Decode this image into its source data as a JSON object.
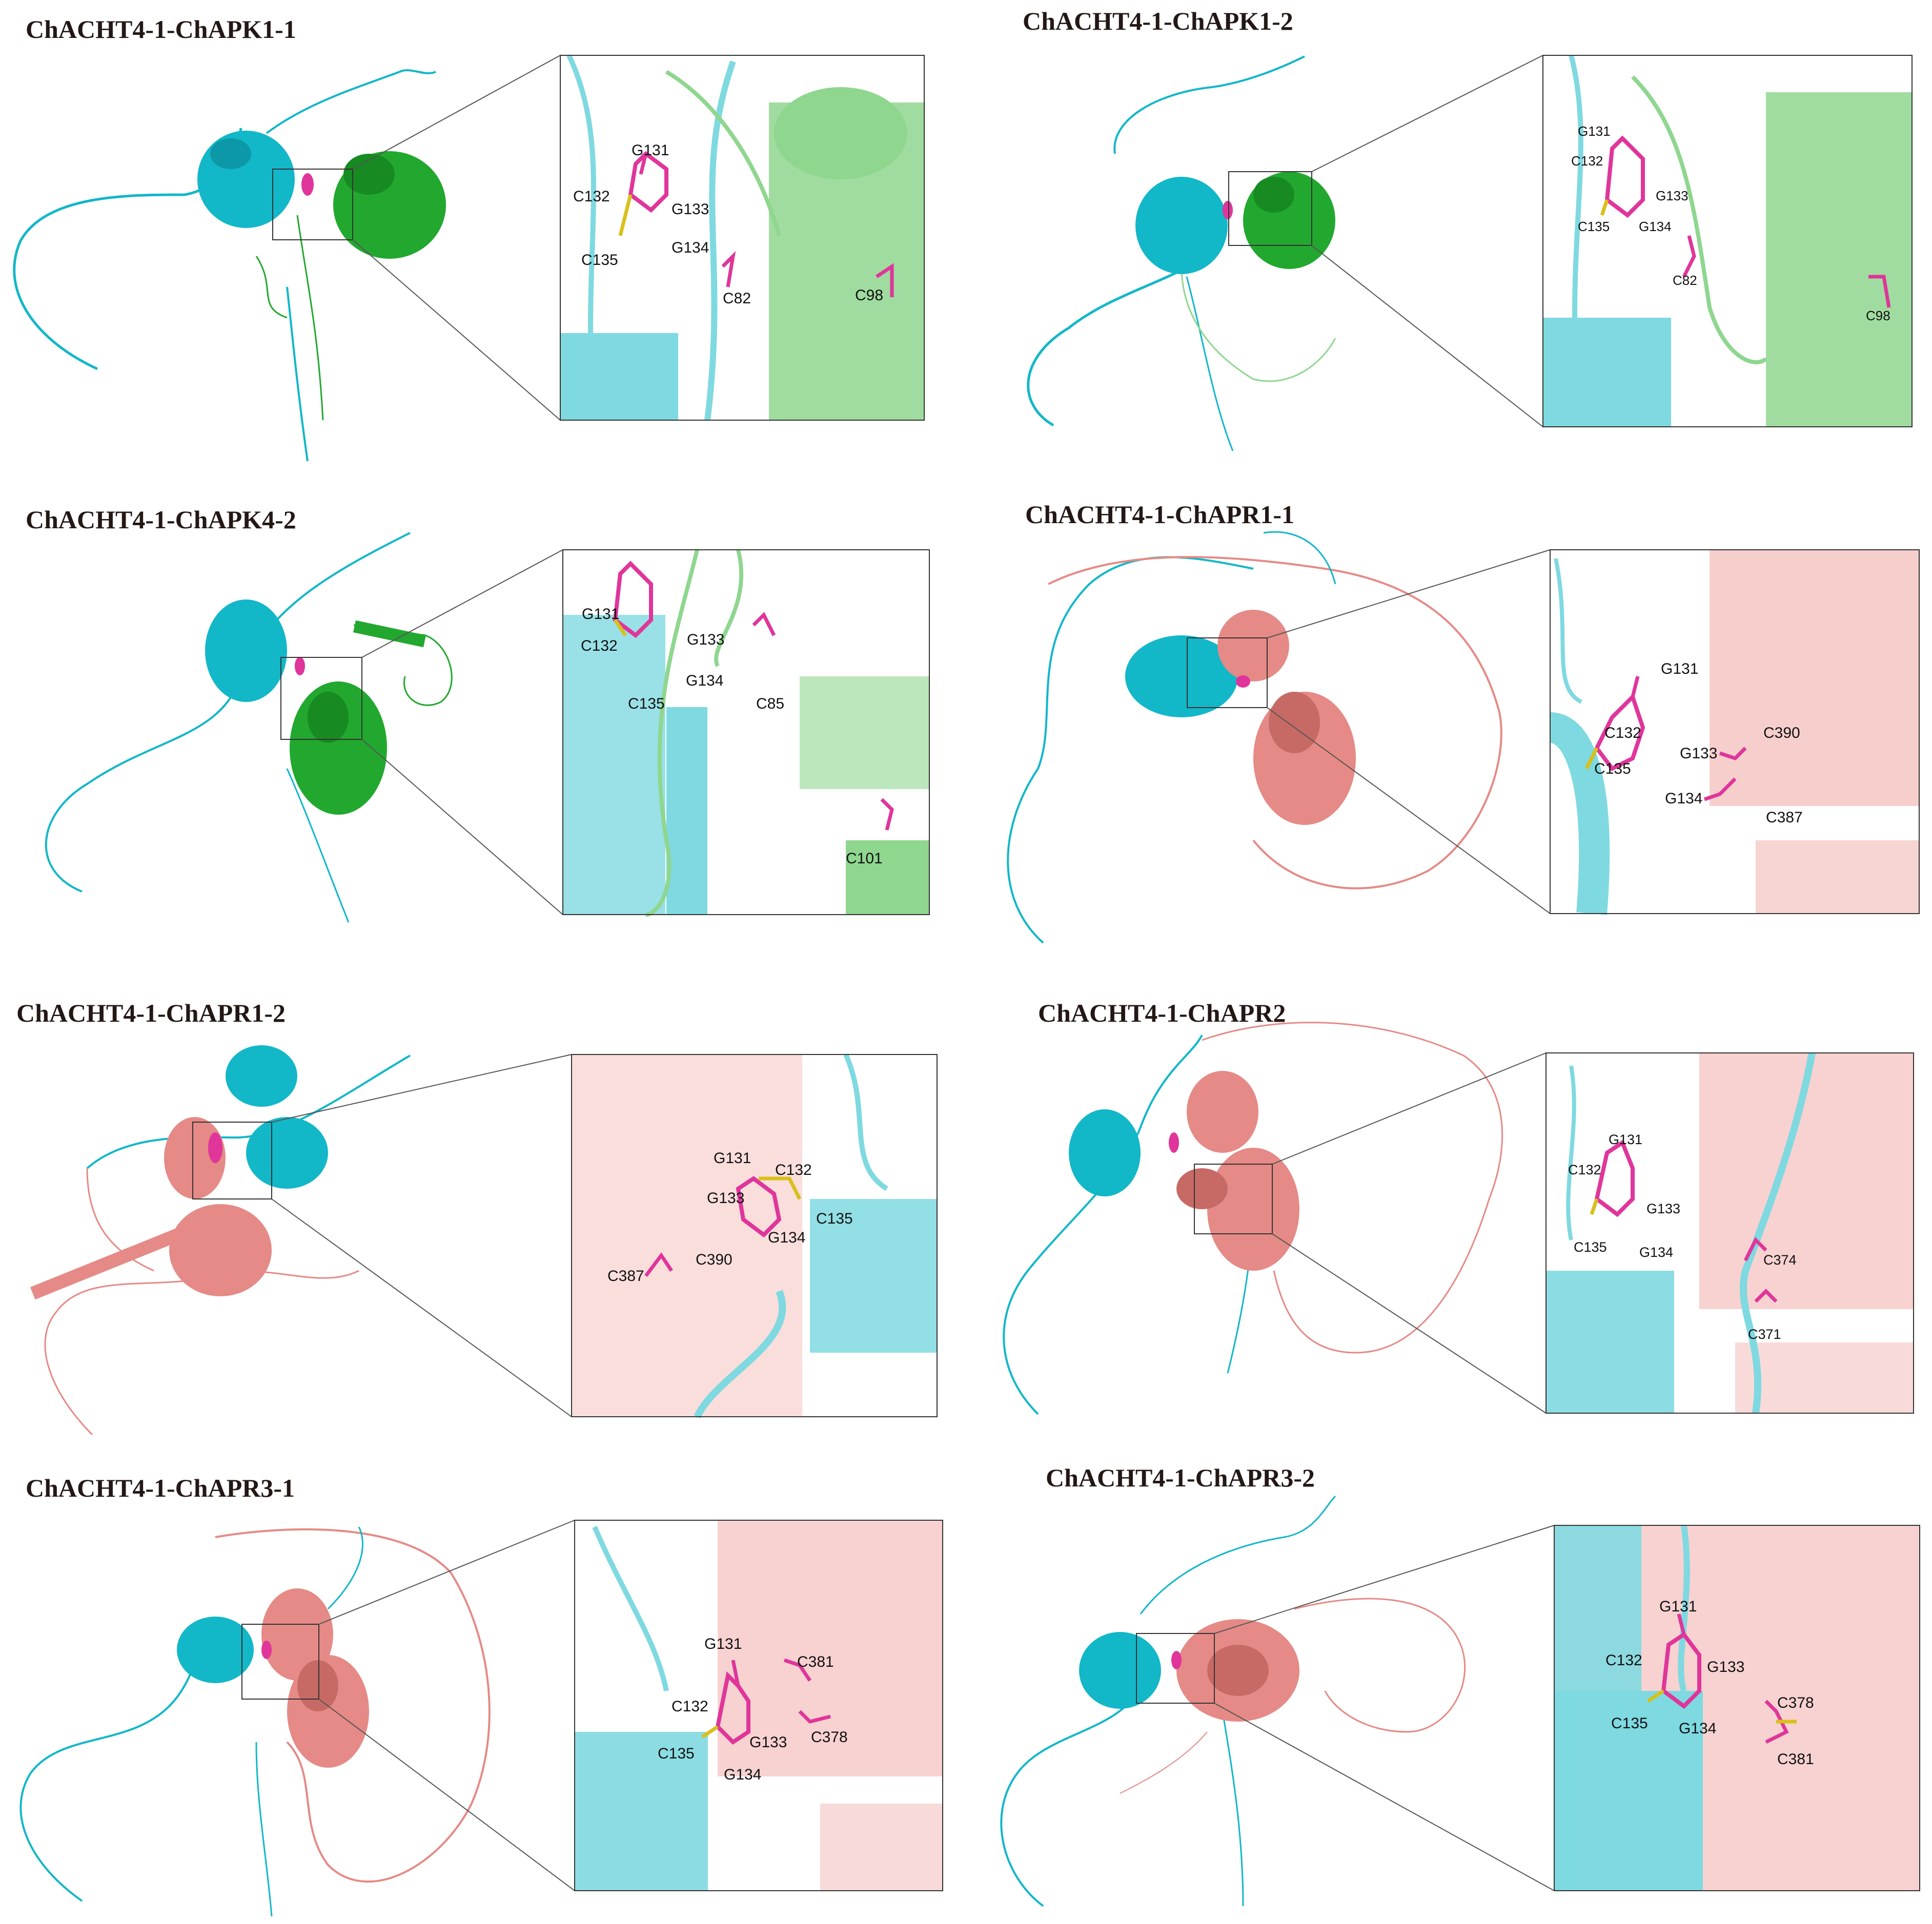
{
  "colors": {
    "host": "#12b7c8",
    "host_light": "#7fd9e0",
    "apk": "#22a82f",
    "apk_light": "#8fd68f",
    "apr": "#e58a86",
    "apr_light": "#f4c3c0",
    "ligand": "#e0359b",
    "sulfur": "#d9c01a",
    "nitrogen": "#2b3fc9"
  },
  "panels": [
    {
      "id": "p1",
      "title": "ChACHT4-1-ChAPK1-1",
      "partner": "apk",
      "residues": [
        "G131",
        "C132",
        "G133",
        "C135",
        "G134",
        "C82",
        "C98"
      ]
    },
    {
      "id": "p2",
      "title": "ChACHT4-1-ChAPK1-2",
      "partner": "apk",
      "residues": [
        "G131",
        "C132",
        "G133",
        "C135",
        "G134",
        "C82",
        "C98"
      ]
    },
    {
      "id": "p3",
      "title": "ChACHT4-1-ChAPK4-2",
      "partner": "apk",
      "residues": [
        "G131",
        "C132",
        "G133",
        "G134",
        "C135",
        "C85",
        "C101"
      ]
    },
    {
      "id": "p4",
      "title": "ChACHT4-1-ChAPR1-1",
      "partner": "apr",
      "residues": [
        "G131",
        "C132",
        "C390",
        "G133",
        "C135",
        "G134",
        "C387"
      ]
    },
    {
      "id": "p5",
      "title": "ChACHT4-1-ChAPR1-2",
      "partner": "apr",
      "residues": [
        "G131",
        "C132",
        "G133",
        "C135",
        "G134",
        "C387",
        "C390"
      ]
    },
    {
      "id": "p6",
      "title": "ChACHT4-1-ChAPR2",
      "partner": "apr",
      "residues": [
        "G131",
        "C132",
        "G133",
        "C374",
        "C135",
        "G134",
        "C371"
      ]
    },
    {
      "id": "p7",
      "title": "ChACHT4-1-ChAPR3-1",
      "partner": "apr",
      "residues": [
        "G131",
        "C381",
        "C132",
        "C378",
        "G133",
        "C135",
        "G134"
      ]
    },
    {
      "id": "p8",
      "title": "ChACHT4-1-ChAPR3-2",
      "partner": "apr",
      "residues": [
        "G131",
        "C132",
        "G133",
        "C378",
        "C135",
        "G134",
        "C381"
      ]
    }
  ]
}
